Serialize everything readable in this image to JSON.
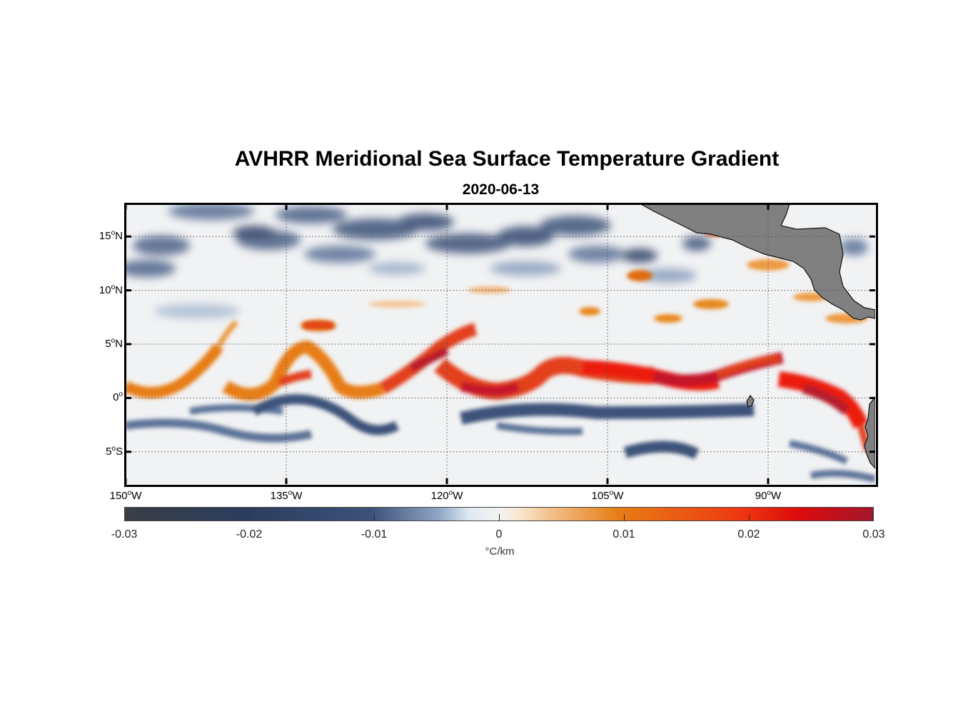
{
  "title": "AVHRR Meridional Sea Surface Temperature Gradient",
  "subtitle": "2020-06-13",
  "map": {
    "projection": "equirectangular",
    "extent": {
      "lon_min": -150,
      "lon_max": -80,
      "lat_min": -8,
      "lat_max": 18
    },
    "land_color": "#808080",
    "features": [
      "equatorial-front-warm-band",
      "south-equatorial-cool-band",
      "central-america-landmass",
      "south-america-landmass"
    ]
  },
  "axes": {
    "y_ticks": [
      {
        "deg": "15",
        "hem": "N",
        "lat": 15
      },
      {
        "deg": "10",
        "hem": "N",
        "lat": 10
      },
      {
        "deg": "5",
        "hem": "N",
        "lat": 5
      },
      {
        "deg": "0",
        "hem": "",
        "lat": 0
      },
      {
        "deg": "5",
        "hem": "S",
        "lat": -5
      }
    ],
    "x_ticks": [
      {
        "deg": "150",
        "hem": "W",
        "lon": -150
      },
      {
        "deg": "135",
        "hem": "W",
        "lon": -135
      },
      {
        "deg": "120",
        "hem": "W",
        "lon": -120
      },
      {
        "deg": "105",
        "hem": "W",
        "lon": -105
      },
      {
        "deg": "90",
        "hem": "W",
        "lon": -90
      }
    ],
    "degree_symbol": "o"
  },
  "colorbar": {
    "min": -0.03,
    "max": 0.03,
    "ticks": [
      "-0.03",
      "-0.02",
      "-0.01",
      "0",
      "0.01",
      "0.02",
      "0.03"
    ],
    "unit": "°C/km",
    "colors": {
      "neg_max": "#3a3e45",
      "neg": "#2b3d5e",
      "mid": "#f3f3f1",
      "pos": "#e77d14",
      "pos_max": "#a3162e"
    }
  }
}
